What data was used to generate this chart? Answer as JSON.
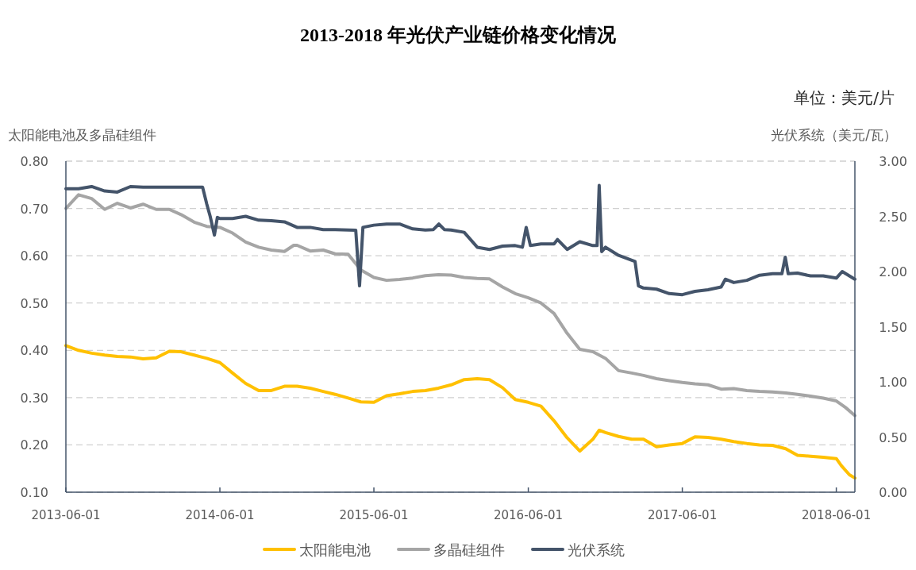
{
  "chart_data": {
    "type": "line",
    "title": "2013-2018 年光伏产业链价格变化情况",
    "ylabel": "太阳能电池及多晶硅组件",
    "y2label": "光伏系统（美元/瓦）",
    "annotations": [
      "单位：美元/片"
    ],
    "xlim": [
      "2013-06-01",
      "2018-07-15"
    ],
    "xticks": [
      "2013-06-01",
      "2014-06-01",
      "2015-06-01",
      "2016-06-01",
      "2017-06-01",
      "2018-06-01"
    ],
    "ylim": [
      0.1,
      0.8
    ],
    "yticks": [
      {
        "value": 0.1,
        "label": "0.10"
      },
      {
        "value": 0.2,
        "label": "0.20"
      },
      {
        "value": 0.3,
        "label": "0.30"
      },
      {
        "value": 0.4,
        "label": "0.40"
      },
      {
        "value": 0.5,
        "label": "0.50"
      },
      {
        "value": 0.6,
        "label": "0.60"
      },
      {
        "value": 0.7,
        "label": "0.70"
      },
      {
        "value": 0.8,
        "label": "0.80"
      }
    ],
    "y2lim": [
      0,
      3
    ],
    "y2ticks": [
      {
        "value": 0,
        "label": "0.00"
      },
      {
        "value": 0.5,
        "label": "0.50"
      },
      {
        "value": 1,
        "label": "1.00"
      },
      {
        "value": 1.5,
        "label": "1.50"
      },
      {
        "value": 2,
        "label": "2.00"
      },
      {
        "value": 2.5,
        "label": "2.50"
      },
      {
        "value": 3,
        "label": "3.00"
      }
    ],
    "grid": "y",
    "legend": "bottom",
    "marker": "none",
    "series": [
      {
        "name": "太阳能电池",
        "color": "#ffc000",
        "x": [
          "2013-06-01",
          "2013-07-01",
          "2013-08-01",
          "2013-09-01",
          "2013-10-01",
          "2013-11-01",
          "2013-12-01",
          "2014-01-01",
          "2014-02-01",
          "2014-03-01",
          "2014-04-01",
          "2014-05-01",
          "2014-06-01",
          "2014-07-01",
          "2014-08-01",
          "2014-09-01",
          "2014-10-01",
          "2014-11-01",
          "2014-12-01",
          "2015-01-01",
          "2015-02-01",
          "2015-03-01",
          "2015-04-01",
          "2015-05-01",
          "2015-06-01",
          "2015-07-01",
          "2015-08-01",
          "2015-09-01",
          "2015-10-01",
          "2015-11-01",
          "2015-12-01",
          "2016-01-01",
          "2016-02-01",
          "2016-03-01",
          "2016-04-01",
          "2016-05-01",
          "2016-06-01",
          "2016-07-01",
          "2016-08-01",
          "2016-09-01",
          "2016-10-01",
          "2016-11-01",
          "2016-11-16",
          "2016-12-01",
          "2017-01-01",
          "2017-02-01",
          "2017-03-01",
          "2017-04-01",
          "2017-05-01",
          "2017-06-01",
          "2017-07-01",
          "2017-08-01",
          "2017-09-01",
          "2017-10-01",
          "2017-11-01",
          "2017-12-01",
          "2018-01-01",
          "2018-02-01",
          "2018-03-01",
          "2018-04-01",
          "2018-05-01",
          "2018-06-01",
          "2018-06-13",
          "2018-07-02",
          "2018-07-15"
        ],
        "values": [
          0.41,
          0.4,
          0.394,
          0.39,
          0.387,
          0.386,
          0.382,
          0.384,
          0.398,
          0.397,
          0.39,
          0.383,
          0.374,
          0.352,
          0.33,
          0.315,
          0.315,
          0.324,
          0.324,
          0.32,
          0.313,
          0.307,
          0.299,
          0.291,
          0.29,
          0.304,
          0.308,
          0.313,
          0.315,
          0.32,
          0.327,
          0.338,
          0.34,
          0.338,
          0.321,
          0.296,
          0.29,
          0.282,
          0.251,
          0.215,
          0.187,
          0.212,
          0.231,
          0.226,
          0.218,
          0.212,
          0.212,
          0.196,
          0.2,
          0.203,
          0.217,
          0.216,
          0.212,
          0.207,
          0.203,
          0.2,
          0.199,
          0.192,
          0.178,
          0.176,
          0.174,
          0.171,
          0.156,
          0.137,
          0.13
        ]
      },
      {
        "name": "多晶硅组件",
        "color": "#a5a5a5",
        "x": [
          "2013-06-01",
          "2013-07-01",
          "2013-08-01",
          "2013-09-01",
          "2013-10-01",
          "2013-11-01",
          "2013-12-01",
          "2014-01-01",
          "2014-02-01",
          "2014-03-01",
          "2014-04-01",
          "2014-05-01",
          "2014-06-01",
          "2014-07-01",
          "2014-08-01",
          "2014-09-01",
          "2014-10-01",
          "2014-11-01",
          "2014-11-23",
          "2014-12-01",
          "2015-01-01",
          "2015-02-01",
          "2015-03-01",
          "2015-04-01",
          "2015-05-01",
          "2015-06-01",
          "2015-07-01",
          "2015-08-01",
          "2015-09-01",
          "2015-10-01",
          "2015-11-01",
          "2015-12-01",
          "2016-01-01",
          "2016-02-01",
          "2016-03-01",
          "2016-04-01",
          "2016-05-01",
          "2016-06-01",
          "2016-07-01",
          "2016-08-01",
          "2016-09-01",
          "2016-10-01",
          "2016-11-01",
          "2016-12-01",
          "2017-01-01",
          "2017-02-01",
          "2017-03-01",
          "2017-04-01",
          "2017-05-01",
          "2017-06-01",
          "2017-07-01",
          "2017-08-01",
          "2017-09-01",
          "2017-10-01",
          "2017-11-01",
          "2017-12-01",
          "2018-01-01",
          "2018-02-01",
          "2018-03-01",
          "2018-04-01",
          "2018-05-01",
          "2018-06-01",
          "2018-06-23",
          "2018-07-15"
        ],
        "values": [
          0.7,
          0.729,
          0.721,
          0.698,
          0.711,
          0.701,
          0.709,
          0.698,
          0.698,
          0.687,
          0.671,
          0.662,
          0.66,
          0.648,
          0.629,
          0.618,
          0.612,
          0.609,
          0.622,
          0.622,
          0.61,
          0.612,
          0.604,
          0.603,
          0.57,
          0.554,
          0.548,
          0.55,
          0.553,
          0.558,
          0.56,
          0.559,
          0.554,
          0.552,
          0.551,
          0.534,
          0.52,
          0.511,
          0.5,
          0.478,
          0.436,
          0.402,
          0.397,
          0.383,
          0.357,
          0.352,
          0.347,
          0.34,
          0.336,
          0.332,
          0.329,
          0.327,
          0.318,
          0.319,
          0.315,
          0.313,
          0.312,
          0.31,
          0.307,
          0.303,
          0.299,
          0.293,
          0.279,
          0.262
        ]
      },
      {
        "name": "光伏系统",
        "color": "#44546a",
        "axis": "y2",
        "x": [
          "2013-06-01",
          "2013-07-01",
          "2013-08-01",
          "2013-09-01",
          "2013-10-01",
          "2013-11-01",
          "2013-12-01",
          "2014-04-21",
          "2014-05-01",
          "2014-05-09",
          "2014-05-19",
          "2014-05-26",
          "2014-06-01",
          "2014-07-01",
          "2014-08-01",
          "2014-09-01",
          "2014-10-01",
          "2014-11-01",
          "2014-12-01",
          "2015-01-01",
          "2015-02-01",
          "2015-03-01",
          "2015-04-19",
          "2015-04-28",
          "2015-05-06",
          "2015-06-01",
          "2015-07-01",
          "2015-08-01",
          "2015-09-01",
          "2015-10-01",
          "2015-10-20",
          "2015-11-02",
          "2015-11-15",
          "2015-12-01",
          "2016-01-01",
          "2016-02-01",
          "2016-03-01",
          "2016-04-01",
          "2016-05-01",
          "2016-05-18",
          "2016-05-27",
          "2016-06-06",
          "2016-07-01",
          "2016-08-01",
          "2016-08-09",
          "2016-09-01",
          "2016-10-01",
          "2016-11-01",
          "2016-11-11",
          "2016-11-16",
          "2016-11-22",
          "2016-12-01",
          "2017-01-01",
          "2017-02-09",
          "2017-02-17",
          "2017-03-01",
          "2017-04-01",
          "2017-05-01",
          "2017-06-01",
          "2017-07-01",
          "2017-08-01",
          "2017-09-01",
          "2017-09-11",
          "2017-10-01",
          "2017-11-01",
          "2017-12-01",
          "2018-01-01",
          "2018-01-23",
          "2018-01-31",
          "2018-02-07",
          "2018-03-01",
          "2018-04-01",
          "2018-05-01",
          "2018-06-01",
          "2018-06-15",
          "2018-07-15"
        ],
        "values": [
          2.75,
          2.75,
          2.77,
          2.73,
          2.72,
          2.77,
          2.765,
          2.765,
          2.61,
          2.5,
          2.33,
          2.49,
          2.48,
          2.48,
          2.5,
          2.465,
          2.46,
          2.45,
          2.4,
          2.4,
          2.38,
          2.38,
          2.375,
          1.87,
          2.4,
          2.42,
          2.43,
          2.43,
          2.386,
          2.376,
          2.38,
          2.43,
          2.38,
          2.376,
          2.355,
          2.22,
          2.2,
          2.23,
          2.235,
          2.22,
          2.4,
          2.235,
          2.25,
          2.25,
          2.29,
          2.2,
          2.27,
          2.235,
          2.235,
          2.78,
          2.18,
          2.22,
          2.146,
          2.09,
          1.87,
          1.85,
          1.84,
          1.8,
          1.79,
          1.82,
          1.835,
          1.86,
          1.93,
          1.9,
          1.92,
          1.966,
          1.98,
          1.98,
          2.13,
          1.98,
          1.986,
          1.96,
          1.96,
          1.94,
          2.0,
          1.93
        ]
      }
    ]
  }
}
